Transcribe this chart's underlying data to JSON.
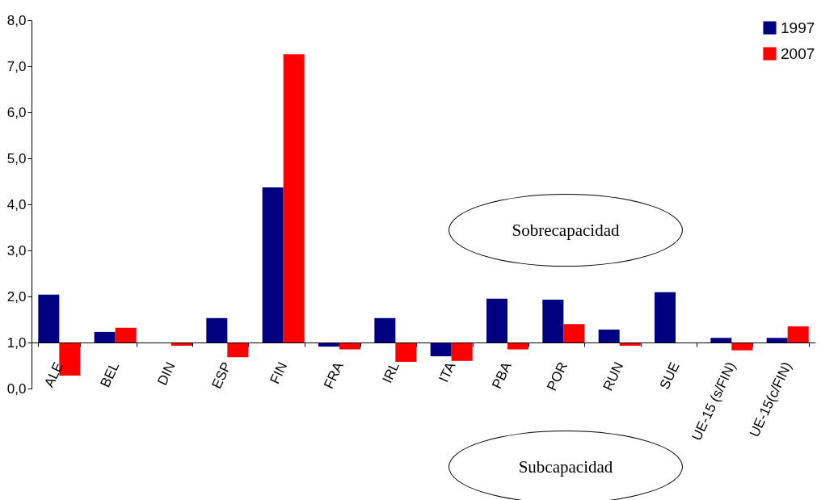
{
  "chart_data": {
    "type": "bar",
    "categories": [
      "ALE",
      "BEL",
      "DIN",
      "ESP",
      "FIN",
      "FRA",
      "IRL",
      "ITA",
      "PBA",
      "POR",
      "RUN",
      "SUE",
      "UE-15 (s/FIN)",
      "UE-15(c/FIN)"
    ],
    "series": [
      {
        "name": "1997",
        "color": "#000080",
        "base": [
          1,
          1,
          null,
          1,
          1,
          1,
          1,
          1,
          1,
          1,
          1,
          1,
          1,
          1
        ],
        "values": [
          1.04,
          0.23,
          null,
          0.53,
          3.37,
          -0.09,
          0.53,
          -0.3,
          0.95,
          0.93,
          0.28,
          1.09,
          0.1,
          0.1
        ]
      },
      {
        "name": "2007",
        "color": "#ff0000",
        "base": [
          1,
          1,
          1,
          1,
          1,
          1,
          1,
          1,
          1,
          1,
          1,
          null,
          1,
          1
        ],
        "values": [
          -0.72,
          0.32,
          -0.07,
          -0.32,
          6.26,
          -0.15,
          -0.42,
          -0.4,
          -0.15,
          0.4,
          -0.07,
          null,
          -0.17,
          0.35
        ]
      }
    ],
    "ylim": [
      0,
      8
    ],
    "yticks": [
      {
        "value": 0,
        "label": "0,0"
      },
      {
        "value": 1,
        "label": "1,0"
      },
      {
        "value": 2,
        "label": "2,0"
      },
      {
        "value": 3,
        "label": "3,0"
      },
      {
        "value": 4,
        "label": "4,0"
      },
      {
        "value": 5,
        "label": "5,0"
      },
      {
        "value": 6,
        "label": "6,0"
      },
      {
        "value": 7,
        "label": "7,0"
      },
      {
        "value": 8,
        "label": "8,0"
      }
    ],
    "grid": false,
    "legend": "top right",
    "annotations": [
      "Sobrecapacidad",
      "Subcapacidad"
    ]
  }
}
